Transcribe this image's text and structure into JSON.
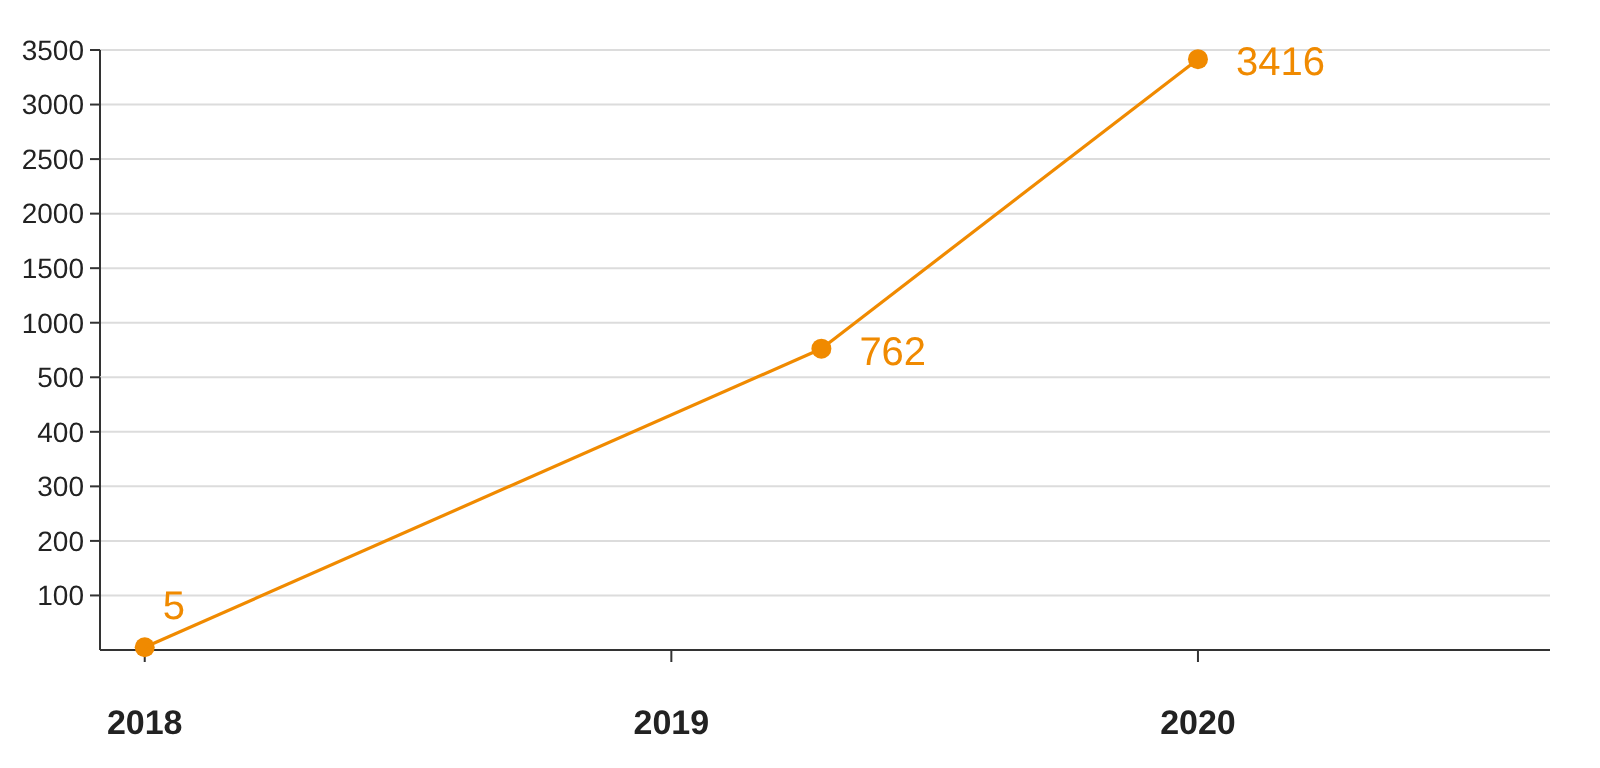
{
  "chart_data": [
    {
      "type": "line",
      "series": [
        {
          "color": "#f08a00",
          "x": [
            "2019-04-15",
            "2020-01-01"
          ],
          "values": [
            762,
            3416
          ]
        }
      ],
      "xlim": [
        "2017-12-01",
        "2020-09-01"
      ],
      "ylim": [
        500,
        3500
      ],
      "yticks": [
        1000,
        1500,
        2000,
        2500,
        3000,
        3500
      ],
      "grid": "y",
      "marker": "circle",
      "data_labels": true,
      "tick_labels": "y"
    },
    {
      "type": "line",
      "series": [
        {
          "color": "#f08a00",
          "x": [
            "2018-01-01"
          ],
          "values": [
            5
          ]
        }
      ],
      "xlim": [
        "2017-12-01",
        "2020-09-01"
      ],
      "xticks": [
        {
          "value": "2018-01-01",
          "label": "2018"
        },
        {
          "value": "2019-01-01",
          "label": "2019"
        },
        {
          "value": "2020-01-01",
          "label": "2020"
        }
      ],
      "ylim": [
        0,
        500
      ],
      "yticks": [
        100,
        200,
        300,
        400,
        500
      ],
      "grid": "y",
      "marker": "circle",
      "data_labels": true
    }
  ]
}
